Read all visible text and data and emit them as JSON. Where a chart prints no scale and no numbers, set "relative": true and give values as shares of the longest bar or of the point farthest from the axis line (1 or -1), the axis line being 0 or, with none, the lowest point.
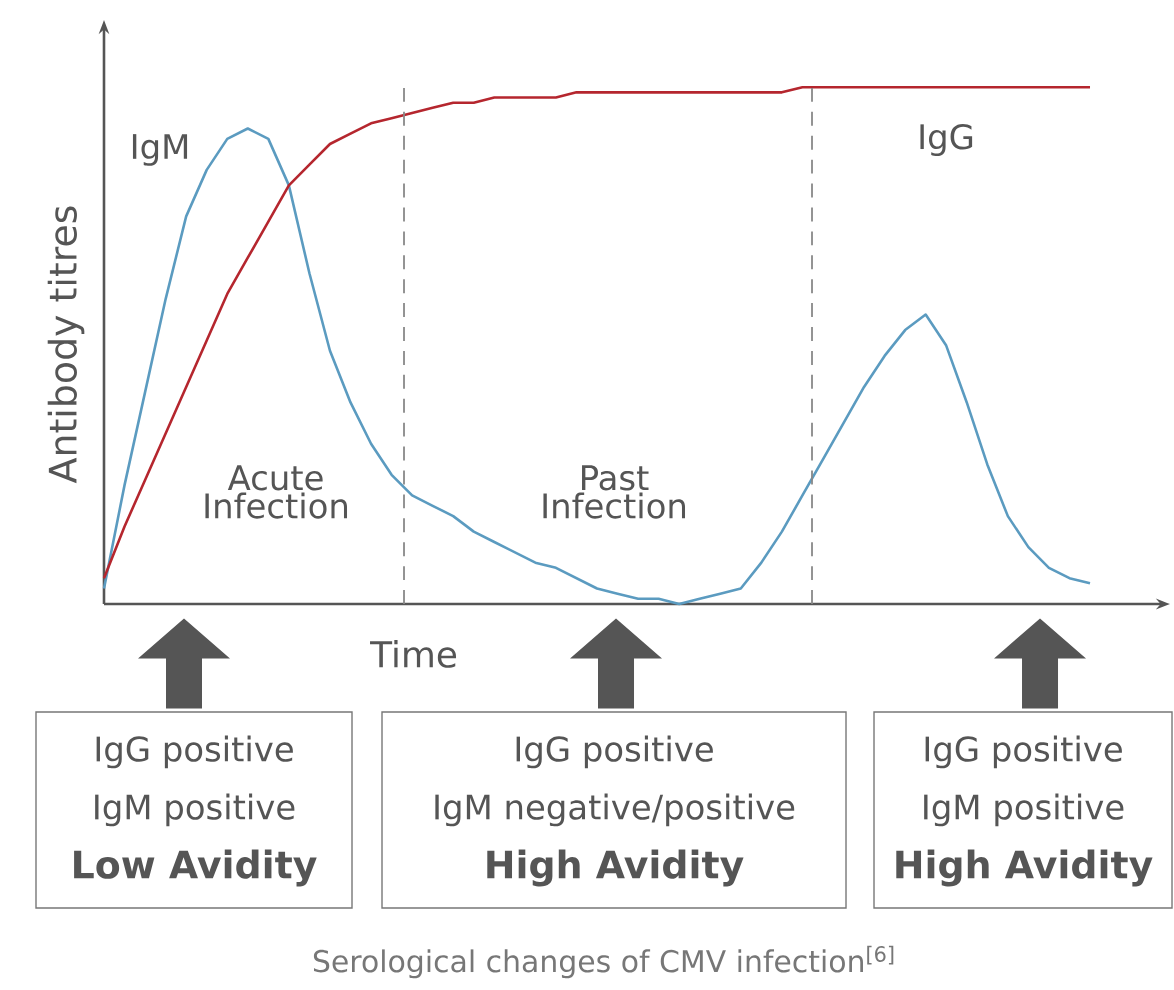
{
  "chart_data": {
    "type": "line",
    "relative": true,
    "xlabel": "Time",
    "ylabel": "Antibody titres",
    "tick_labels": false,
    "categories": [
      null,
      null,
      null,
      null,
      null,
      null,
      null,
      null,
      null,
      null,
      null,
      null,
      null,
      null,
      null,
      null,
      null,
      null,
      null,
      null,
      null,
      null,
      null,
      null,
      null,
      null,
      null,
      null,
      null,
      null,
      null,
      null,
      null,
      null,
      null,
      null,
      null,
      null,
      null,
      null,
      null,
      null,
      null,
      null,
      null,
      null,
      null,
      null,
      null
    ],
    "series": [
      {
        "name": "IgM",
        "color": "#5b9bc0",
        "values": [
          0.03,
          0.23,
          0.41,
          0.59,
          0.75,
          0.84,
          0.9,
          0.92,
          0.9,
          0.81,
          0.64,
          0.49,
          0.39,
          0.31,
          0.25,
          0.21,
          0.19,
          0.17,
          0.14,
          0.12,
          0.1,
          0.08,
          0.07,
          0.05,
          0.03,
          0.02,
          0.01,
          0.01,
          0,
          0.01,
          0.02,
          0.03,
          0.08,
          0.14,
          0.21,
          0.28,
          0.35,
          0.42,
          0.48,
          0.53,
          0.56,
          0.5,
          0.39,
          0.27,
          0.17,
          0.11,
          0.07,
          0.05,
          0.04
        ]
      },
      {
        "name": "IgG",
        "color": "#b5262e",
        "values": [
          0.05,
          0.15,
          0.24,
          0.33,
          0.42,
          0.51,
          0.6,
          0.67,
          0.74,
          0.81,
          0.85,
          0.89,
          0.91,
          0.93,
          0.94,
          0.95,
          0.96,
          0.97,
          0.97,
          0.98,
          0.98,
          0.98,
          0.98,
          0.99,
          0.99,
          0.99,
          0.99,
          0.99,
          0.99,
          0.99,
          0.99,
          0.99,
          0.99,
          0.99,
          1,
          1,
          1,
          1,
          1,
          1,
          1,
          1,
          1,
          1,
          1,
          1,
          1,
          1,
          1
        ]
      }
    ],
    "annotations": [
      "Acute Infection",
      "Past Infection",
      "IgG positive",
      "IgM positive",
      "Low Avidity",
      "IgG positive",
      "IgM negative/positive",
      "High Avidity",
      "IgG positive",
      "IgM positive",
      "High Avidity",
      "Serological changes of CMV infection$^{[6]}$"
    ]
  }
}
